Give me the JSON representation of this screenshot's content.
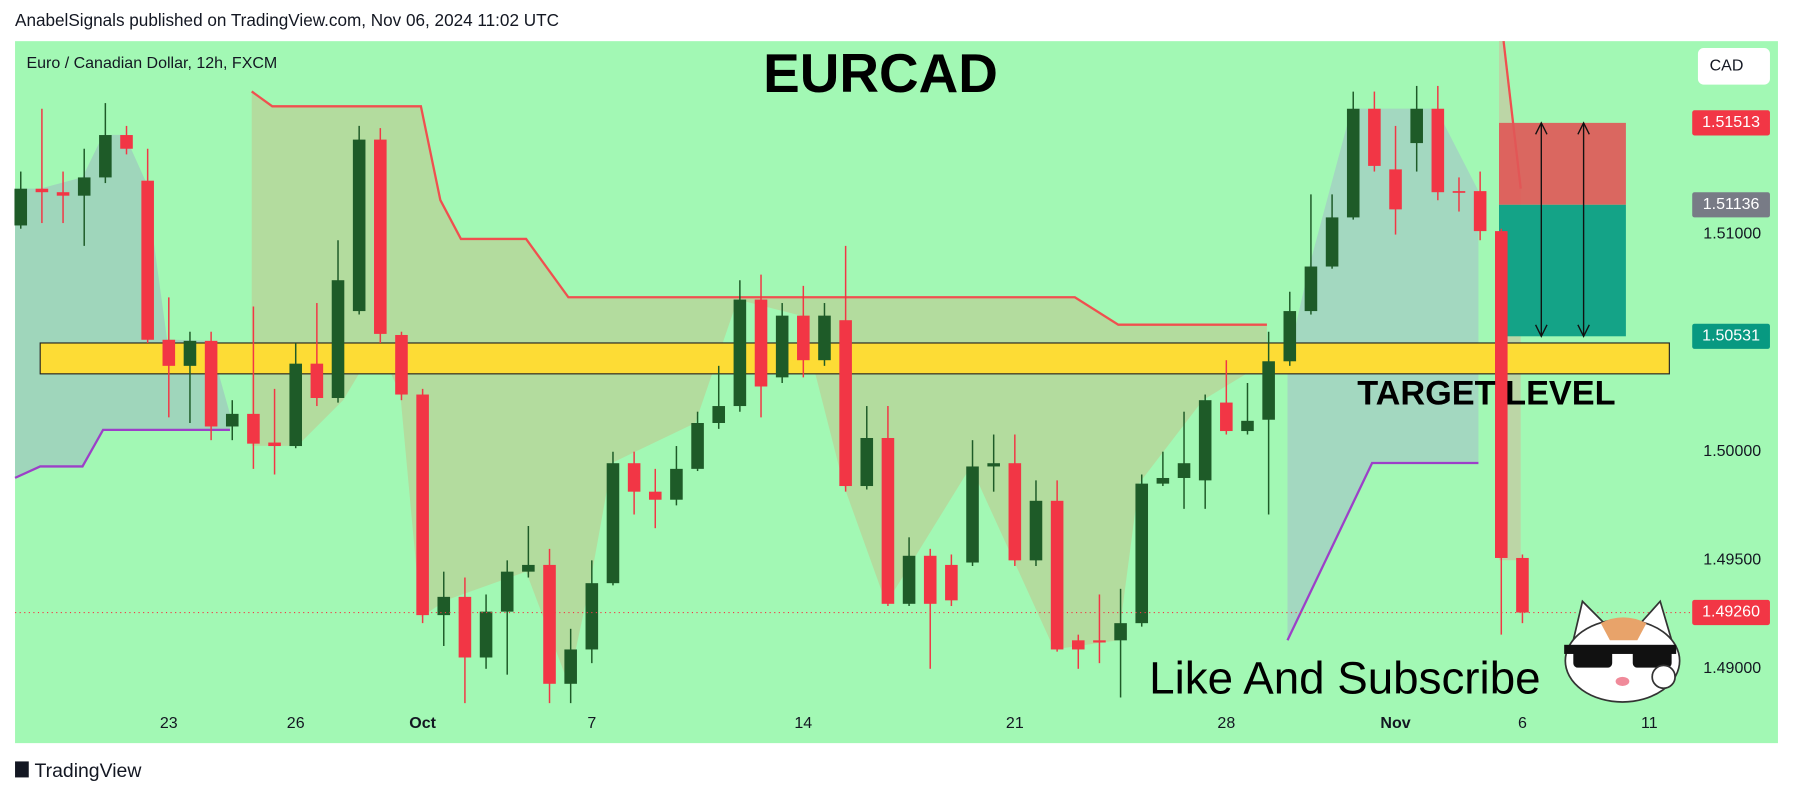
{
  "header": {
    "text": "AnabelSignals published on TradingView.com, Nov 06, 2024 11:02 UTC"
  },
  "footer": {
    "brand": "TradingView"
  },
  "chart_data": {
    "type": "candlestick",
    "title": "EURCAD",
    "subtitle": "Euro / Canadian Dollar, 12h, FXCM",
    "currency": "CAD",
    "annotations": [
      "TARGET LEVEL",
      "Like And Subscribe"
    ],
    "up_color": "#1e5b28",
    "down_color": "#f23645",
    "categories": [
      null,
      null,
      null,
      null,
      null,
      null,
      null,
      "23",
      null,
      null,
      null,
      null,
      null,
      "26",
      null,
      null,
      null,
      null,
      null,
      "Oct",
      null,
      null,
      null,
      null,
      null,
      null,
      null,
      "7",
      null,
      null,
      null,
      null,
      null,
      null,
      null,
      null,
      null,
      "14",
      null,
      null,
      null,
      null,
      null,
      null,
      null,
      null,
      null,
      "21",
      null,
      null,
      null,
      null,
      null,
      null,
      null,
      null,
      null,
      "28",
      null,
      null,
      null,
      null,
      null,
      null,
      null,
      "Nov",
      null,
      null,
      null,
      null,
      null,
      "6",
      null,
      null,
      null,
      null,
      null,
      "11"
    ],
    "open": [
      1.51041,
      1.5121,
      1.51194,
      1.51178,
      1.51262,
      1.51457,
      1.51247,
      1.50515,
      1.50395,
      1.5051,
      1.50116,
      1.50174,
      1.50042,
      1.50026,
      1.50405,
      1.50247,
      1.50647,
      1.51436,
      1.50537,
      1.50263,
      1.49248,
      1.49332,
      1.49053,
      1.49264,
      1.49448,
      1.49479,
      1.48932,
      1.4909,
      1.49395,
      1.49947,
      1.49816,
      1.49779,
      1.49921,
      1.50132,
      1.5021,
      1.507,
      1.50342,
      1.50626,
      1.50421,
      1.50605,
      1.49842,
      1.50063,
      1.493,
      1.49521,
      1.49479,
      1.4949,
      1.49932,
      1.49947,
      1.495,
      1.49774,
      1.49132,
      1.49132,
      1.49132,
      1.49211,
      1.49853,
      1.49879,
      1.49868,
      1.50226,
      1.50095,
      1.50147,
      1.50416,
      1.50647,
      1.50852,
      1.51078,
      1.51578,
      1.51299,
      1.5142,
      1.51578,
      1.51199,
      1.51199,
      1.51015,
      1.49511,
      null,
      null,
      null,
      null,
      null,
      null
    ],
    "high": [
      1.51289,
      1.51578,
      1.51289,
      1.51394,
      1.51604,
      1.51499,
      1.51394,
      1.5071,
      1.50552,
      1.50552,
      1.50237,
      1.50668,
      1.50289,
      1.505,
      1.50684,
      1.50973,
      1.51499,
      1.51489,
      1.50552,
      1.50289,
      1.49448,
      1.49421,
      1.49343,
      1.495,
      1.49658,
      1.49553,
      1.49185,
      1.495,
      1.5,
      1.5,
      1.49921,
      1.50026,
      1.50184,
      1.50395,
      1.50789,
      1.50815,
      1.50684,
      1.50763,
      1.50684,
      1.50947,
      1.5021,
      1.5021,
      1.49606,
      1.49553,
      1.49527,
      1.50053,
      1.50079,
      1.50079,
      1.49868,
      1.49868,
      1.49158,
      1.49343,
      1.49369,
      1.49895,
      1.5,
      1.50184,
      1.50263,
      1.50421,
      1.50316,
      1.50552,
      1.50736,
      1.51184,
      1.51184,
      1.51657,
      1.51657,
      1.51499,
      1.51683,
      1.51683,
      1.51262,
      1.51289,
      1.51026,
      1.49527,
      null,
      null,
      null,
      null,
      null,
      null
    ],
    "low": [
      1.51026,
      1.51052,
      1.51052,
      1.50947,
      1.51236,
      1.51368,
      1.505,
      1.50158,
      1.50132,
      1.50053,
      1.50053,
      1.49921,
      1.49895,
      1.50016,
      1.5021,
      1.50226,
      1.50631,
      1.505,
      1.50237,
      1.49211,
      1.49106,
      1.48843,
      1.49001,
      1.48974,
      1.49421,
      1.48843,
      1.48843,
      1.49027,
      1.49385,
      1.49711,
      1.49648,
      1.49753,
      1.49911,
      1.50105,
      1.50184,
      1.50158,
      1.50316,
      1.50342,
      1.50395,
      1.49816,
      1.49826,
      1.4929,
      1.4929,
      1.49001,
      1.4929,
      1.49474,
      1.49816,
      1.49474,
      1.49474,
      1.4908,
      1.49001,
      1.49027,
      1.48869,
      1.49195,
      1.49842,
      1.49737,
      1.49737,
      1.50079,
      1.50079,
      1.49711,
      1.50395,
      1.50631,
      1.50842,
      1.51068,
      1.51289,
      1.50999,
      1.51289,
      1.51157,
      1.51105,
      1.50973,
      1.49158,
      1.49211,
      null,
      null,
      null,
      null,
      null,
      null
    ],
    "close": [
      1.5121,
      1.51194,
      1.51178,
      1.51262,
      1.51457,
      1.51394,
      1.50515,
      1.50395,
      1.5051,
      1.50116,
      1.50174,
      1.50037,
      1.50026,
      1.50405,
      1.50247,
      1.50789,
      1.51436,
      1.50542,
      1.50263,
      1.49248,
      1.49332,
      1.49053,
      1.49264,
      1.49448,
      1.49479,
      1.48932,
      1.4909,
      1.49395,
      1.49947,
      1.49816,
      1.49779,
      1.49921,
      1.50132,
      1.5021,
      1.507,
      1.503,
      1.50626,
      1.50421,
      1.50626,
      1.49842,
      1.50063,
      1.493,
      1.49521,
      1.493,
      1.49316,
      1.49932,
      1.49947,
      1.495,
      1.49774,
      1.4909,
      1.4909,
      1.49122,
      1.49211,
      1.49853,
      1.49879,
      1.49947,
      1.50237,
      1.50095,
      1.50142,
      1.50416,
      1.50647,
      1.50852,
      1.51078,
      1.51578,
      1.51315,
      1.51115,
      1.51578,
      1.51194,
      1.51194,
      1.51015,
      1.49511,
      1.4926,
      null,
      null,
      null,
      null,
      null,
      null
    ],
    "ylim": [
      1.48659,
      1.51889
    ],
    "yticks": [
      {
        "value": 1.49,
        "label": "1.49000"
      },
      {
        "value": 1.495,
        "label": "1.49500"
      },
      {
        "value": 1.5,
        "label": "1.50000"
      },
      {
        "value": 1.51,
        "label": "1.51000"
      }
    ],
    "last_price": {
      "value": 1.4926,
      "label": "1.49260"
    },
    "position": {
      "stop": {
        "value": 1.51513,
        "label": "1.51513"
      },
      "entry": {
        "value": 1.51136,
        "label": "1.51136"
      },
      "target": {
        "value": 1.50531,
        "label": "1.50531"
      }
    }
  }
}
